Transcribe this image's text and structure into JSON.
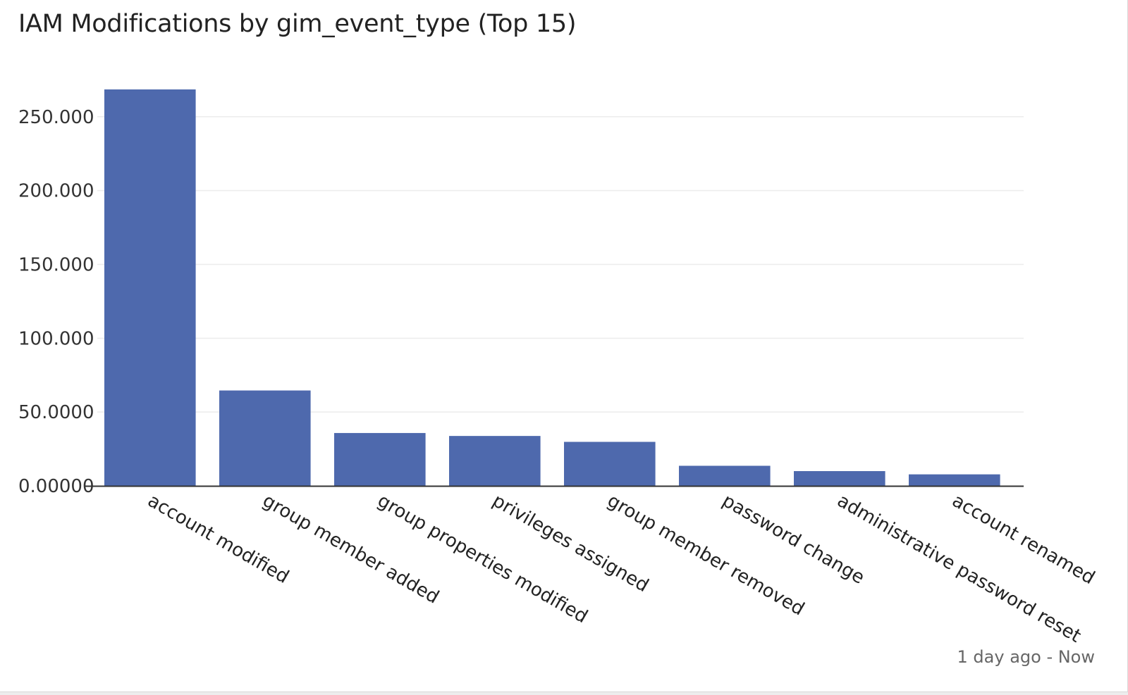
{
  "panel": {
    "title": "IAM Modifications by gim_event_type (Top 15)",
    "time_range": "1 day ago - Now"
  },
  "colors": {
    "bar": "#4e69ad",
    "grid": "#ececec",
    "axis": "#333333"
  },
  "chart_data": {
    "type": "bar",
    "title": "IAM Modifications by gim_event_type (Top 15)",
    "xlabel": "",
    "ylabel": "",
    "categories": [
      "account modified",
      "group member added",
      "group properties modified",
      "privileges assigned",
      "group member removed",
      "password change",
      "administrative password reset",
      "account renamed"
    ],
    "values": [
      268500,
      64600,
      35800,
      33800,
      29800,
      13600,
      10000,
      7800
    ],
    "ylim": [
      0,
      268500
    ],
    "yticks": [
      0,
      50000,
      100000,
      150000,
      200000,
      250000
    ],
    "ytick_labels": [
      "0.00000",
      "50.0000",
      "100.000",
      "150.000",
      "200.000",
      "250.000"
    ],
    "grid": true,
    "legend": "none"
  }
}
